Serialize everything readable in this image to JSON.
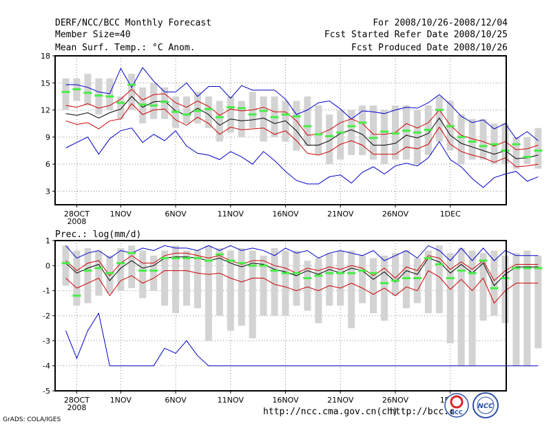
{
  "header": {
    "title": "DERF/NCC/BCC Monthly Forecast",
    "member_size": "Member Size=40",
    "period": "For 2008/10/26-2008/12/04",
    "started": "Fcst Started Refer Date 2008/10/25",
    "produced": "Fcst Produced Date 2008/10/26"
  },
  "footer": {
    "url1": "http://ncc.cma.gov.cn(ch)",
    "url2": "http://bcc.c",
    "credit": "GrADS: COLA/IGES",
    "logo1_text": "BCC",
    "logo2_text": "NCC"
  },
  "colors": {
    "box": "#d3d3d3",
    "median": "#44ee44",
    "mean": "#000000",
    "spread": "#cc0000",
    "extreme": "#0000cc",
    "grid": "#888888"
  },
  "chart_data": [
    {
      "type": "box-forecast",
      "title": "Mean Surf. Temp.: °C Anom.",
      "x_start": "2008-10-27",
      "x_ticks": [
        "28OCT",
        "1NOV",
        "6NOV",
        "11NOV",
        "16NOV",
        "21NOV",
        "26NOV",
        "1DEC"
      ],
      "x_sublabel": "2008",
      "y_ticks": [
        3,
        6,
        9,
        12,
        15,
        18
      ],
      "ylim": [
        1.5,
        18
      ],
      "box_low": [
        12,
        13,
        12.5,
        11.5,
        12,
        11,
        12,
        10.5,
        11,
        11,
        10,
        10.5,
        10.5,
        10,
        8.5,
        9.5,
        9,
        10,
        8.5,
        9,
        8.5,
        7.5,
        8,
        7,
        6,
        6.5,
        7,
        7,
        6.5,
        6,
        6.5,
        6.5,
        6,
        7,
        8.5,
        7.5,
        6,
        6.5,
        6.5,
        6,
        6,
        5.5,
        6,
        5.5
      ],
      "box_high": [
        15.5,
        15.5,
        16,
        15.5,
        15.5,
        13.5,
        16,
        14.5,
        15,
        14.5,
        13.5,
        13.5,
        14,
        13.5,
        13,
        13.5,
        13,
        14,
        13.5,
        13.5,
        13,
        13,
        13.5,
        12.5,
        11.5,
        12,
        12,
        12.5,
        12.5,
        12,
        12.5,
        12.5,
        12,
        12.5,
        13.5,
        13,
        11.5,
        11,
        11,
        10.5,
        10.5,
        9,
        9,
        10
      ],
      "median": [
        14,
        14.3,
        13.9,
        13.6,
        13.5,
        12.8,
        14.8,
        12.6,
        12.5,
        12.9,
        11.8,
        11.5,
        11.9,
        12.1,
        11.2,
        12.3,
        12.2,
        11.5,
        11.9,
        11.2,
        11.5,
        11.3,
        10.2,
        9.3,
        9.1,
        9.5,
        10.2,
        10.6,
        8.9,
        9.6,
        9.4,
        9.7,
        9.5,
        9.8,
        12,
        10.2,
        9,
        8.5,
        8,
        8.2,
        7.5,
        8.2,
        6.8,
        7.5
      ],
      "mean": [
        11.6,
        11.4,
        11.7,
        11.1,
        11.7,
        12.1,
        13.5,
        12.3,
        12.9,
        13.0,
        11.9,
        11.4,
        12.2,
        11.5,
        10.3,
        11.0,
        10.8,
        10.9,
        11.1,
        10.5,
        10.8,
        9.7,
        8.1,
        8.1,
        8.6,
        9.4,
        9.8,
        9.3,
        8.1,
        8.1,
        8.3,
        9.2,
        8.9,
        9.4,
        11.1,
        9.2,
        8.3,
        7.9,
        7.5,
        7.1,
        7.5,
        6.6,
        6.7,
        7.0
      ],
      "upper": [
        12.5,
        12.3,
        12.7,
        12.2,
        12.5,
        13.2,
        14.3,
        13.1,
        13.7,
        13.8,
        12.8,
        12.3,
        13.0,
        12.4,
        11.4,
        12.1,
        11.9,
        12.0,
        12.3,
        11.8,
        11.8,
        10.8,
        9.2,
        9.3,
        9.8,
        10.6,
        11.0,
        10.5,
        9.3,
        9.3,
        9.5,
        10.5,
        10.0,
        10.6,
        12.0,
        10.3,
        9.2,
        8.8,
        8.5,
        8.0,
        8.5,
        7.6,
        7.7,
        8.1
      ],
      "lower": [
        10.8,
        10.4,
        10.6,
        9.9,
        10.8,
        11.0,
        12.7,
        11.5,
        12.0,
        12.1,
        10.9,
        10.3,
        11.2,
        10.5,
        9.3,
        10.1,
        9.8,
        9.9,
        10.0,
        9.3,
        9.7,
        8.6,
        7.2,
        7.0,
        7.4,
        8.2,
        8.6,
        8.1,
        7.1,
        7.1,
        7.1,
        7.9,
        7.7,
        8.2,
        10.1,
        8.2,
        7.4,
        7.0,
        6.7,
        6.2,
        6.7,
        5.7,
        5.8,
        6.0
      ],
      "max": [
        14.8,
        14.8,
        14.5,
        14.0,
        13.8,
        16.6,
        14.5,
        16.7,
        15.2,
        14.0,
        14.0,
        15.0,
        13.5,
        14.6,
        14.6,
        13.3,
        14.7,
        14.2,
        14.2,
        14.2,
        13.2,
        11.5,
        12.0,
        12.8,
        13.0,
        12.1,
        11.0,
        11.9,
        11.8,
        11.6,
        12.0,
        12.3,
        12.2,
        12.8,
        13.7,
        12.6,
        11.3,
        10.6,
        10.9,
        9.9,
        10.5,
        8.8,
        9.6,
        8.6
      ],
      "min": [
        7.8,
        8.4,
        9.0,
        7.1,
        8.8,
        9.7,
        10.0,
        8.4,
        9.3,
        8.6,
        9.7,
        8.0,
        7.2,
        7.0,
        6.5,
        7.4,
        6.8,
        6.0,
        7.4,
        6.4,
        5.2,
        4.2,
        3.8,
        3.8,
        4.6,
        4.8,
        3.9,
        5.1,
        5.7,
        4.9,
        5.8,
        6.1,
        5.8,
        6.7,
        8.5,
        6.5,
        5.7,
        4.4,
        3.4,
        4.5,
        4.9,
        5.2,
        4.1,
        4.6
      ]
    },
    {
      "type": "box-forecast",
      "title": "Prec.: log(mm/d)",
      "x_start": "2008-10-27",
      "x_ticks": [
        "28OCT",
        "1NOV",
        "6NOV",
        "11NOV",
        "16NOV",
        "21NOV",
        "26NOV",
        "1DEC"
      ],
      "x_sublabel": "2008",
      "y_ticks": [
        -5,
        -4,
        -3,
        -2,
        -1,
        0,
        1
      ],
      "ylim": [
        -5,
        1
      ],
      "box_low": [
        -0.8,
        -1.6,
        -1.5,
        -1.2,
        -1.1,
        -1.0,
        -0.9,
        -1.3,
        -1.0,
        -1.6,
        -1.9,
        -1.6,
        -1.7,
        -3.0,
        -2.0,
        -2.6,
        -2.4,
        -2.9,
        -2.0,
        -2.0,
        -2.0,
        -1.6,
        -1.8,
        -2.3,
        -1.6,
        -1.6,
        -2.5,
        -1.5,
        -1.9,
        -2.2,
        -1.2,
        -1.7,
        -1.5,
        -1.9,
        -1.9,
        -3.1,
        -4.0,
        -4.0,
        -2.2,
        -2.0,
        -2.3,
        -4.0,
        -4.0,
        -3.3
      ],
      "box_high": [
        0.8,
        0.6,
        0.7,
        0.6,
        0.4,
        0.7,
        0.8,
        0.6,
        0.4,
        0.6,
        0.8,
        0.6,
        0.6,
        0.8,
        0.7,
        0.6,
        0.7,
        0.6,
        0.4,
        0.7,
        0.6,
        0.6,
        0.2,
        0.3,
        0.5,
        0.6,
        0.6,
        0.4,
        0.3,
        0.4,
        0.5,
        0.6,
        0.3,
        0.6,
        0.8,
        0.5,
        0.7,
        0.6,
        0.5,
        0.6,
        0.4,
        0.5,
        0.6,
        0.4
      ],
      "median": [
        0.1,
        -1.2,
        -0.2,
        -0.1,
        -0.3,
        0.1,
        0.5,
        -0.2,
        -0.2,
        0.3,
        0.3,
        0.3,
        0.3,
        0.2,
        0.45,
        0.2,
        0.1,
        0.0,
        0.0,
        -0.2,
        -0.3,
        -0.3,
        -0.5,
        -0.4,
        -0.3,
        -0.3,
        -0.3,
        -0.2,
        -0.3,
        -0.7,
        -0.6,
        -0.5,
        -0.5,
        0.3,
        0.05,
        -0.5,
        -0.2,
        -0.3,
        0.2,
        -0.9,
        -0.5,
        -0.1,
        -0.1,
        -0.1
      ],
      "mean": [
        0.1,
        -0.3,
        -0.1,
        0.05,
        -0.6,
        -0.1,
        0.2,
        -0.1,
        0.0,
        0.3,
        0.35,
        0.35,
        0.3,
        0.2,
        0.3,
        0.1,
        -0.05,
        0.1,
        0.05,
        -0.15,
        -0.25,
        -0.4,
        -0.2,
        -0.35,
        -0.15,
        -0.3,
        -0.1,
        -0.2,
        -0.55,
        -0.25,
        -0.65,
        -0.2,
        -0.35,
        0.3,
        0.15,
        -0.3,
        0.05,
        -0.3,
        0.1,
        -0.8,
        -0.35,
        -0.05,
        -0.05,
        -0.05
      ],
      "upper": [
        0.2,
        -0.2,
        0.1,
        0.2,
        -0.4,
        0.1,
        0.4,
        0.1,
        0.1,
        0.4,
        0.5,
        0.5,
        0.4,
        0.3,
        0.4,
        0.2,
        0.05,
        0.2,
        0.2,
        0.0,
        -0.1,
        -0.3,
        -0.1,
        -0.2,
        -0.05,
        -0.15,
        0.0,
        -0.1,
        -0.4,
        -0.1,
        -0.5,
        -0.05,
        -0.2,
        0.4,
        0.3,
        -0.15,
        0.15,
        -0.15,
        0.2,
        -0.6,
        -0.2,
        0.05,
        0.05,
        0.05
      ],
      "lower": [
        -0.5,
        -0.9,
        -0.7,
        -0.5,
        -1.2,
        -0.6,
        -0.4,
        -0.7,
        -0.5,
        -0.2,
        -0.2,
        -0.2,
        -0.3,
        -0.35,
        -0.3,
        -0.5,
        -0.65,
        -0.5,
        -0.5,
        -0.75,
        -0.85,
        -1.0,
        -0.85,
        -1.0,
        -0.8,
        -0.9,
        -0.7,
        -0.9,
        -1.15,
        -0.9,
        -1.2,
        -0.85,
        -1.0,
        -0.2,
        -0.45,
        -0.95,
        -0.55,
        -1.0,
        -0.5,
        -1.5,
        -1.0,
        -0.7,
        -0.7,
        -0.7
      ],
      "max": [
        0.8,
        0.3,
        0.5,
        0.6,
        0.3,
        0.6,
        0.5,
        0.7,
        0.6,
        0.8,
        0.7,
        0.7,
        0.6,
        0.8,
        0.6,
        0.8,
        0.6,
        0.7,
        0.6,
        0.4,
        0.7,
        0.5,
        0.6,
        0.3,
        0.5,
        0.6,
        0.5,
        0.4,
        0.6,
        0.2,
        0.4,
        0.6,
        0.3,
        0.8,
        0.6,
        0.2,
        0.7,
        0.2,
        0.7,
        0.2,
        0.6,
        0.4,
        0.4,
        0.4
      ],
      "min": [
        -2.6,
        -3.7,
        -2.6,
        -1.9,
        -4.0,
        -4.0,
        -4.0,
        -4.0,
        -4.0,
        -3.3,
        -3.5,
        -3.0,
        -3.6,
        -4.0,
        -4.0,
        -4.0,
        -4.0,
        -4.0,
        -4.0,
        -4.0,
        -4.0,
        -4.0,
        -4.0,
        -4.0,
        -4.0,
        -4.0,
        -4.0,
        -4.0,
        -4.0,
        -4.0,
        -4.0,
        -4.0,
        -4.0,
        -4.0,
        -4.0,
        -4.0,
        -4.0,
        -4.0,
        -4.0,
        -4.0,
        -4.0,
        -4.0,
        -4.0,
        -4.0
      ]
    }
  ]
}
